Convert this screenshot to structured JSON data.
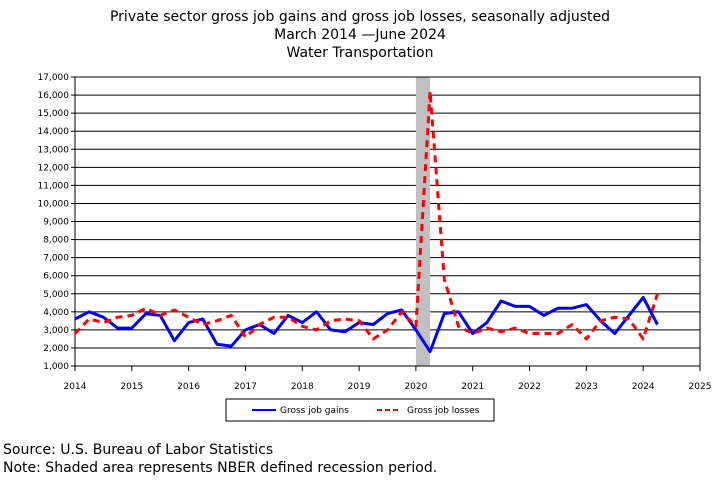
{
  "chart_data": {
    "type": "line",
    "title": [
      "Private sector gross job gains and gross job losses, seasonally adjusted",
      "March 2014 —June 2024",
      "Water Transportation"
    ],
    "x_tick_labels": [
      "2014",
      "2015",
      "2016",
      "2017",
      "2018",
      "2019",
      "2020",
      "2021",
      "2022",
      "2023",
      "2024",
      "2025"
    ],
    "y_tick_labels": [
      "1,000",
      "2,000",
      "3,000",
      "4,000",
      "5,000",
      "6,000",
      "7,000",
      "8,000",
      "9,000",
      "10,000",
      "11,000",
      "12,000",
      "13,000",
      "14,000",
      "15,000",
      "16,000",
      "17,000"
    ],
    "xlim": [
      2014,
      2025
    ],
    "ylim": [
      1000,
      17000
    ],
    "grid": "horizontal",
    "legend_position": "bottom",
    "recession": {
      "start": 2020.0,
      "end": 2020.25,
      "color": "#c0c0c0"
    },
    "x": [
      2014.0,
      2014.25,
      2014.5,
      2014.75,
      2015.0,
      2015.25,
      2015.5,
      2015.75,
      2016.0,
      2016.25,
      2016.5,
      2016.75,
      2017.0,
      2017.25,
      2017.5,
      2017.75,
      2018.0,
      2018.25,
      2018.5,
      2018.75,
      2019.0,
      2019.25,
      2019.5,
      2019.75,
      2020.0,
      2020.25,
      2020.5,
      2020.75,
      2021.0,
      2021.25,
      2021.5,
      2021.75,
      2022.0,
      2022.25,
      2022.5,
      2022.75,
      2023.0,
      2023.25,
      2023.5,
      2023.75,
      2024.0,
      2024.25
    ],
    "series": [
      {
        "name": "Gross job gains",
        "color": "#0000ff",
        "dash": "solid",
        "values": [
          3600,
          4000,
          3700,
          3100,
          3100,
          3900,
          3800,
          2400,
          3400,
          3600,
          2200,
          2100,
          3000,
          3300,
          2800,
          3800,
          3400,
          4000,
          3000,
          2900,
          3400,
          3300,
          3900,
          4100,
          3000,
          1800,
          3900,
          4000,
          2800,
          3400,
          4600,
          4300,
          4300,
          3800,
          4200,
          4200,
          4400,
          3500,
          2800,
          3800,
          4800,
          3300
        ]
      },
      {
        "name": "Gross job losses",
        "color": "#ff0000",
        "dash": "dashed",
        "values": [
          2800,
          3600,
          3400,
          3700,
          3800,
          4200,
          3800,
          4100,
          3700,
          3300,
          3500,
          3800,
          2600,
          3300,
          3700,
          3700,
          3200,
          3000,
          3500,
          3600,
          3500,
          2500,
          3000,
          4000,
          3200,
          16200,
          5800,
          3200,
          2800,
          3100,
          2900,
          3100,
          2800,
          2800,
          2800,
          3300,
          2500,
          3500,
          3700,
          3600,
          2500,
          5000
        ]
      }
    ]
  },
  "footer": {
    "source": "Source: U.S. Bureau of Labor Statistics",
    "note": "Note: Shaded area represents NBER defined recession period."
  }
}
